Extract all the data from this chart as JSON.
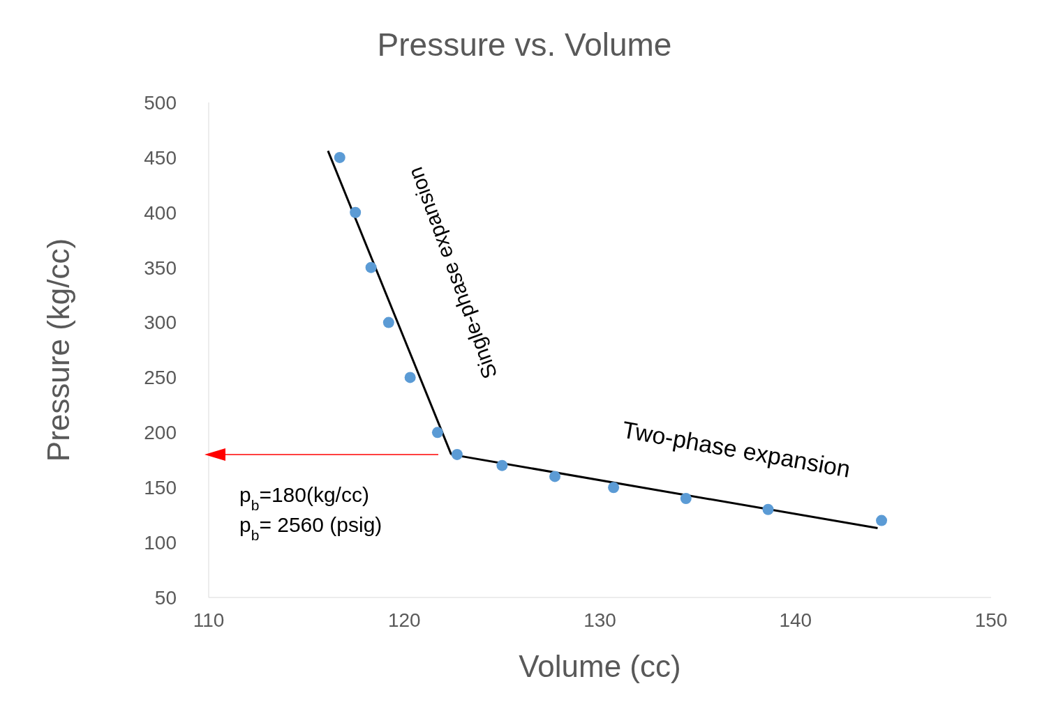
{
  "chart_data": {
    "type": "scatter",
    "title": "Pressure vs. Volume",
    "xlabel": "Volume (cc)",
    "ylabel": "Pressure (kg/cc)",
    "xlim": [
      110,
      150
    ],
    "xticks": [
      110,
      120,
      130,
      140,
      150
    ],
    "ylim": [
      50,
      500
    ],
    "yticks": [
      50,
      100,
      150,
      200,
      250,
      300,
      350,
      400,
      450,
      500
    ],
    "grid": false,
    "marker": "circle",
    "series": [
      {
        "color": "#5b9bd5",
        "x": [
          116.7,
          117.5,
          118.3,
          119.2,
          120.3,
          121.7,
          122.7,
          125.0,
          127.7,
          130.7,
          134.4,
          138.6,
          144.4
        ],
        "values": [
          450,
          400,
          350,
          300,
          250,
          200,
          180,
          170,
          160,
          150,
          140,
          130,
          120
        ]
      },
      {
        "type": "line",
        "color": "#000000",
        "marker": "none",
        "x": [
          116.1,
          122.4
        ],
        "values": [
          456,
          180
        ]
      },
      {
        "type": "line",
        "color": "#000000",
        "marker": "none",
        "x": [
          122.4,
          144.2
        ],
        "values": [
          180,
          113
        ]
      }
    ],
    "annotations": [
      "p$_{b}$=180(kg/cc)",
      "p$_{b}$= 2560 (psig)",
      "Single-phase expansion",
      "Two-phase expansion"
    ]
  }
}
